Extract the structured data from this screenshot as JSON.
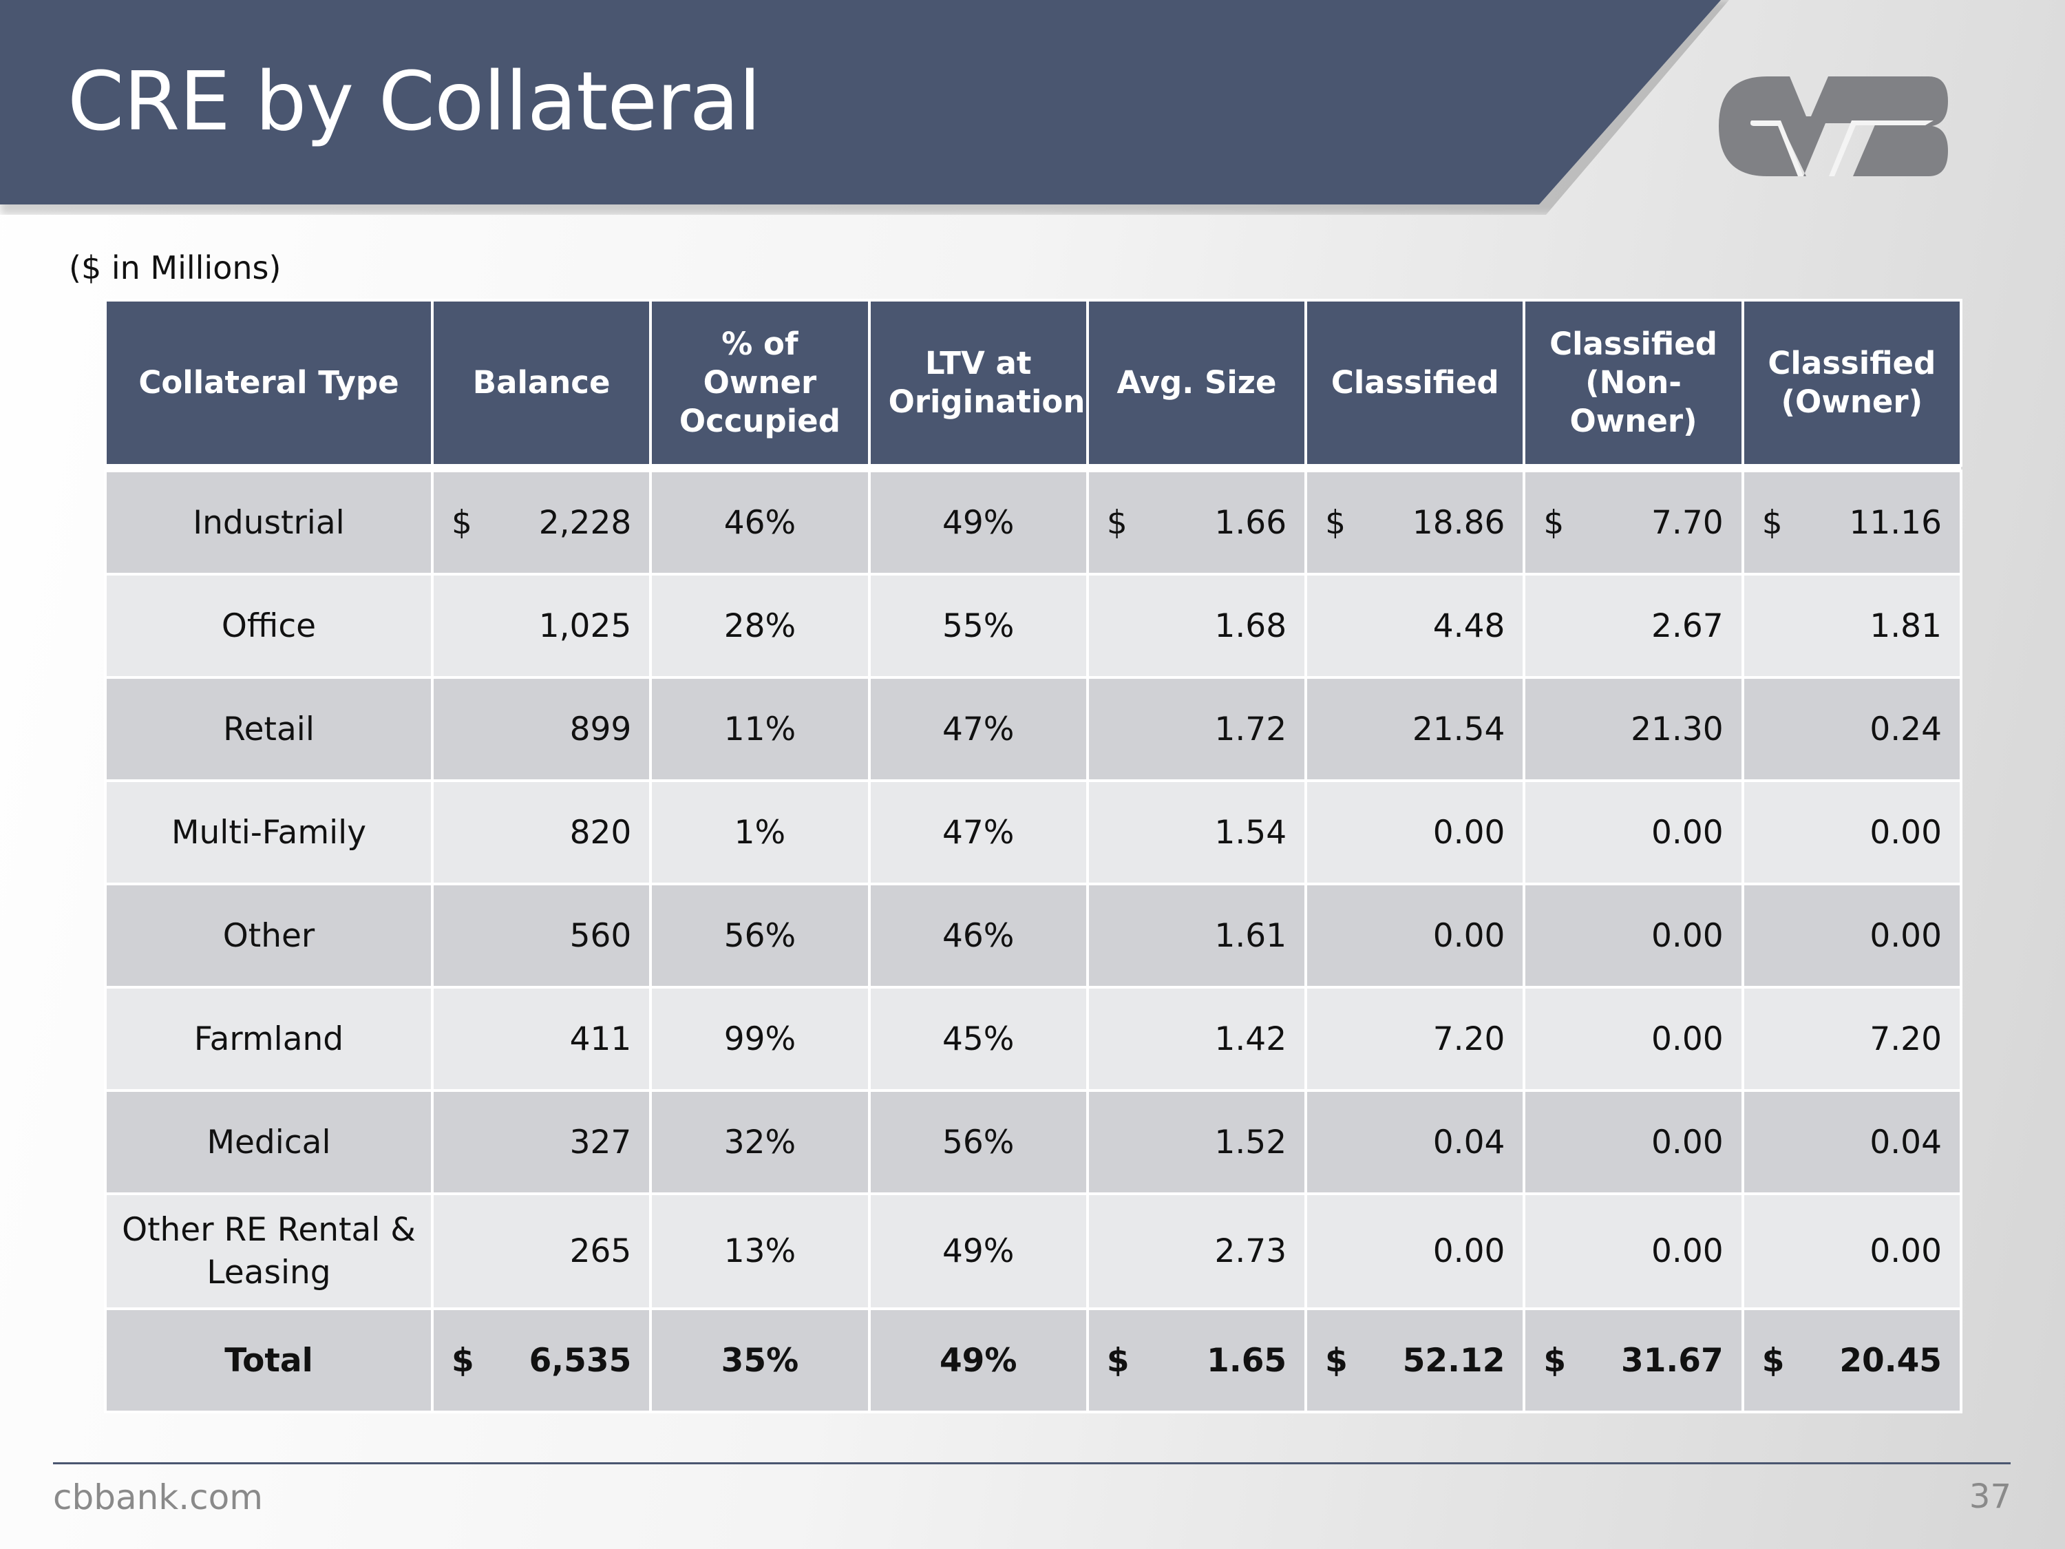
{
  "header": {
    "title": "CRE by Collateral",
    "logo_text": "CVB"
  },
  "subtitle": "($ in Millions)",
  "table": {
    "columns": [
      "Collateral Type",
      "Balance",
      "% of Owner Occupied",
      "LTV at Origination",
      "Avg. Size",
      "Classified",
      "Classified (Non-Owner)",
      "Classified (Owner)"
    ],
    "rows": [
      {
        "type": "Industrial",
        "cells": [
          {
            "sym": "$",
            "val": "2,228"
          },
          {
            "val": "46%"
          },
          {
            "val": "49%"
          },
          {
            "sym": "$",
            "val": "1.66"
          },
          {
            "sym": "$",
            "val": "18.86"
          },
          {
            "sym": "$",
            "val": "7.70"
          },
          {
            "sym": "$",
            "val": "11.16"
          }
        ]
      },
      {
        "type": "Office",
        "cells": [
          {
            "val": "1,025"
          },
          {
            "val": "28%"
          },
          {
            "val": "55%"
          },
          {
            "val": "1.68"
          },
          {
            "val": "4.48"
          },
          {
            "val": "2.67"
          },
          {
            "val": "1.81"
          }
        ]
      },
      {
        "type": "Retail",
        "cells": [
          {
            "val": "899"
          },
          {
            "val": "11%"
          },
          {
            "val": "47%"
          },
          {
            "val": "1.72"
          },
          {
            "val": "21.54"
          },
          {
            "val": "21.30"
          },
          {
            "val": "0.24"
          }
        ]
      },
      {
        "type": "Multi-Family",
        "cells": [
          {
            "val": "820"
          },
          {
            "val": "1%"
          },
          {
            "val": "47%"
          },
          {
            "val": "1.54"
          },
          {
            "val": "0.00"
          },
          {
            "val": "0.00"
          },
          {
            "val": "0.00"
          }
        ]
      },
      {
        "type": "Other",
        "cells": [
          {
            "val": "560"
          },
          {
            "val": "56%"
          },
          {
            "val": "46%"
          },
          {
            "val": "1.61"
          },
          {
            "val": "0.00"
          },
          {
            "val": "0.00"
          },
          {
            "val": "0.00"
          }
        ]
      },
      {
        "type": "Farmland",
        "cells": [
          {
            "val": "411"
          },
          {
            "val": "99%"
          },
          {
            "val": "45%"
          },
          {
            "val": "1.42"
          },
          {
            "val": "7.20"
          },
          {
            "val": "0.00"
          },
          {
            "val": "7.20"
          }
        ]
      },
      {
        "type": "Medical",
        "cells": [
          {
            "val": "327"
          },
          {
            "val": "32%"
          },
          {
            "val": "56%"
          },
          {
            "val": "1.52"
          },
          {
            "val": "0.04"
          },
          {
            "val": "0.00"
          },
          {
            "val": "0.04"
          }
        ]
      },
      {
        "type": "Other RE Rental & Leasing",
        "cells": [
          {
            "val": "265"
          },
          {
            "val": "13%"
          },
          {
            "val": "49%"
          },
          {
            "val": "2.73"
          },
          {
            "val": "0.00"
          },
          {
            "val": "0.00"
          },
          {
            "val": "0.00"
          }
        ]
      },
      {
        "type": "Total",
        "total": true,
        "cells": [
          {
            "sym": "$",
            "val": "6,535"
          },
          {
            "val": "35%"
          },
          {
            "val": "49%"
          },
          {
            "sym": "$",
            "val": "1.65"
          },
          {
            "sym": "$",
            "val": "52.12"
          },
          {
            "sym": "$",
            "val": "31.67"
          },
          {
            "sym": "$",
            "val": "20.45"
          }
        ]
      }
    ]
  },
  "footer": {
    "site": "cbbank.com",
    "page_number": "37"
  },
  "colors": {
    "header_bg": "#4a5670",
    "row_dark": "#d0d1d5",
    "row_light": "#e8e9eb",
    "logo": "#808185"
  }
}
